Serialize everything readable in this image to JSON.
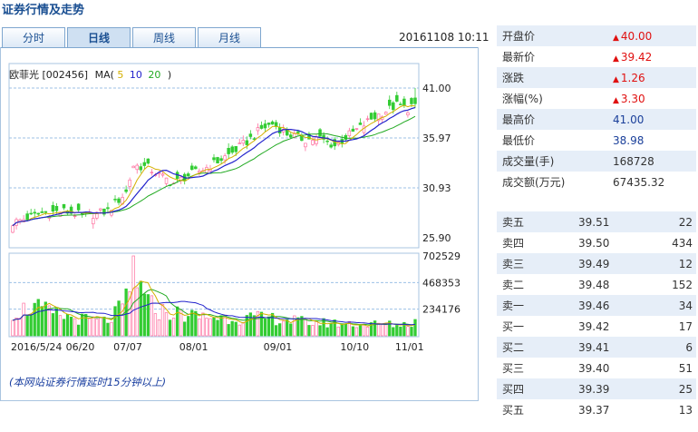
{
  "page": {
    "title": "证券行情及走势",
    "datetime": "20161108 10:11",
    "note": "(本网站证券行情延时15分钟以上)"
  },
  "tabs": [
    "分时",
    "日线",
    "周线",
    "月线"
  ],
  "active_tab": 1,
  "quote": [
    {
      "label": "开盘价",
      "value": "40.00",
      "arrow": "▲",
      "style": "up"
    },
    {
      "label": "最新价",
      "value": "39.42",
      "arrow": "▲",
      "style": "up"
    },
    {
      "label": "涨跌",
      "value": "1.26",
      "arrow": "▲",
      "style": "up"
    },
    {
      "label": "涨幅(%)",
      "value": "3.30",
      "arrow": "▲",
      "style": "up"
    },
    {
      "label": "最高价",
      "value": "41.00",
      "arrow": "",
      "style": "blue"
    },
    {
      "label": "最低价",
      "value": "38.98",
      "arrow": "",
      "style": "blue"
    },
    {
      "label": "成交量(手)",
      "value": "168728",
      "arrow": "",
      "style": ""
    },
    {
      "label": "成交额(万元)",
      "value": "67435.32",
      "arrow": "",
      "style": ""
    }
  ],
  "order_book": [
    {
      "label": "卖五",
      "price": "39.51",
      "qty": "22"
    },
    {
      "label": "卖四",
      "price": "39.50",
      "qty": "434"
    },
    {
      "label": "卖三",
      "price": "39.49",
      "qty": "12"
    },
    {
      "label": "卖二",
      "price": "39.48",
      "qty": "152"
    },
    {
      "label": "卖一",
      "price": "39.46",
      "qty": "34"
    },
    {
      "label": "买一",
      "price": "39.42",
      "qty": "17"
    },
    {
      "label": "买二",
      "price": "39.41",
      "qty": "6"
    },
    {
      "label": "买三",
      "price": "39.40",
      "qty": "51"
    },
    {
      "label": "买四",
      "price": "39.39",
      "qty": "25"
    },
    {
      "label": "买五",
      "price": "39.37",
      "qty": "13"
    }
  ],
  "colors": {
    "rise": "#ff6f9f",
    "fall": "#33cc33",
    "ma5": "#d4b000",
    "ma10": "#2222cc",
    "ma20": "#22aa22"
  },
  "chart_data": {
    "type": "candlestick",
    "legend": {
      "stock": "欧菲光 [002456]",
      "ma_label": "MA(",
      "ma5": "5",
      "ma10": "10",
      "ma20": "20",
      "close_paren": ")"
    },
    "price_axis": {
      "range": [
        25.9,
        41.0
      ],
      "ticks": [
        "41.00",
        "35.97",
        "30.93",
        "25.90"
      ]
    },
    "volume_axis": {
      "range": [
        0,
        702529
      ],
      "ticks": [
        "702529",
        "468353",
        "234176"
      ]
    },
    "x_ticks": [
      {
        "label": "2016/5/24",
        "index": 0
      },
      {
        "label": "06/20",
        "index": 18
      },
      {
        "label": "07/07",
        "index": 31
      },
      {
        "label": "08/01",
        "index": 49
      },
      {
        "label": "09/01",
        "index": 72
      },
      {
        "label": "10/10",
        "index": 93
      },
      {
        "label": "11/01",
        "index": 108
      }
    ],
    "close_keypoints": [
      [
        0,
        27.4
      ],
      [
        8,
        28.4
      ],
      [
        14,
        28.6
      ],
      [
        20,
        28.1
      ],
      [
        26,
        28.6
      ],
      [
        31,
        30.5
      ],
      [
        33,
        33.2
      ],
      [
        37,
        33.0
      ],
      [
        40,
        32.2
      ],
      [
        44,
        31.4
      ],
      [
        48,
        32.2
      ],
      [
        52,
        32.8
      ],
      [
        55,
        33.4
      ],
      [
        60,
        34.5
      ],
      [
        64,
        35.6
      ],
      [
        68,
        36.9
      ],
      [
        71,
        37.4
      ],
      [
        75,
        36.4
      ],
      [
        80,
        35.8
      ],
      [
        84,
        35.9
      ],
      [
        88,
        35.2
      ],
      [
        92,
        36.3
      ],
      [
        95,
        37.0
      ],
      [
        98,
        37.9
      ],
      [
        102,
        38.7
      ],
      [
        105,
        39.3
      ],
      [
        108,
        38.9
      ],
      [
        110,
        39.6
      ]
    ],
    "volume_keypoints": [
      [
        0,
        210000
      ],
      [
        6,
        250000
      ],
      [
        12,
        180000
      ],
      [
        20,
        140000
      ],
      [
        26,
        130000
      ],
      [
        30,
        250000
      ],
      [
        33,
        420000
      ],
      [
        36,
        300000
      ],
      [
        40,
        220000
      ],
      [
        44,
        200000
      ],
      [
        50,
        170000
      ],
      [
        58,
        160000
      ],
      [
        65,
        155000
      ],
      [
        72,
        150000
      ],
      [
        80,
        120000
      ],
      [
        86,
        110000
      ],
      [
        92,
        105000
      ],
      [
        100,
        100000
      ],
      [
        106,
        95000
      ],
      [
        110,
        120000
      ]
    ],
    "volume_spikes": [
      [
        33,
        702529
      ],
      [
        35,
        480000
      ]
    ]
  }
}
